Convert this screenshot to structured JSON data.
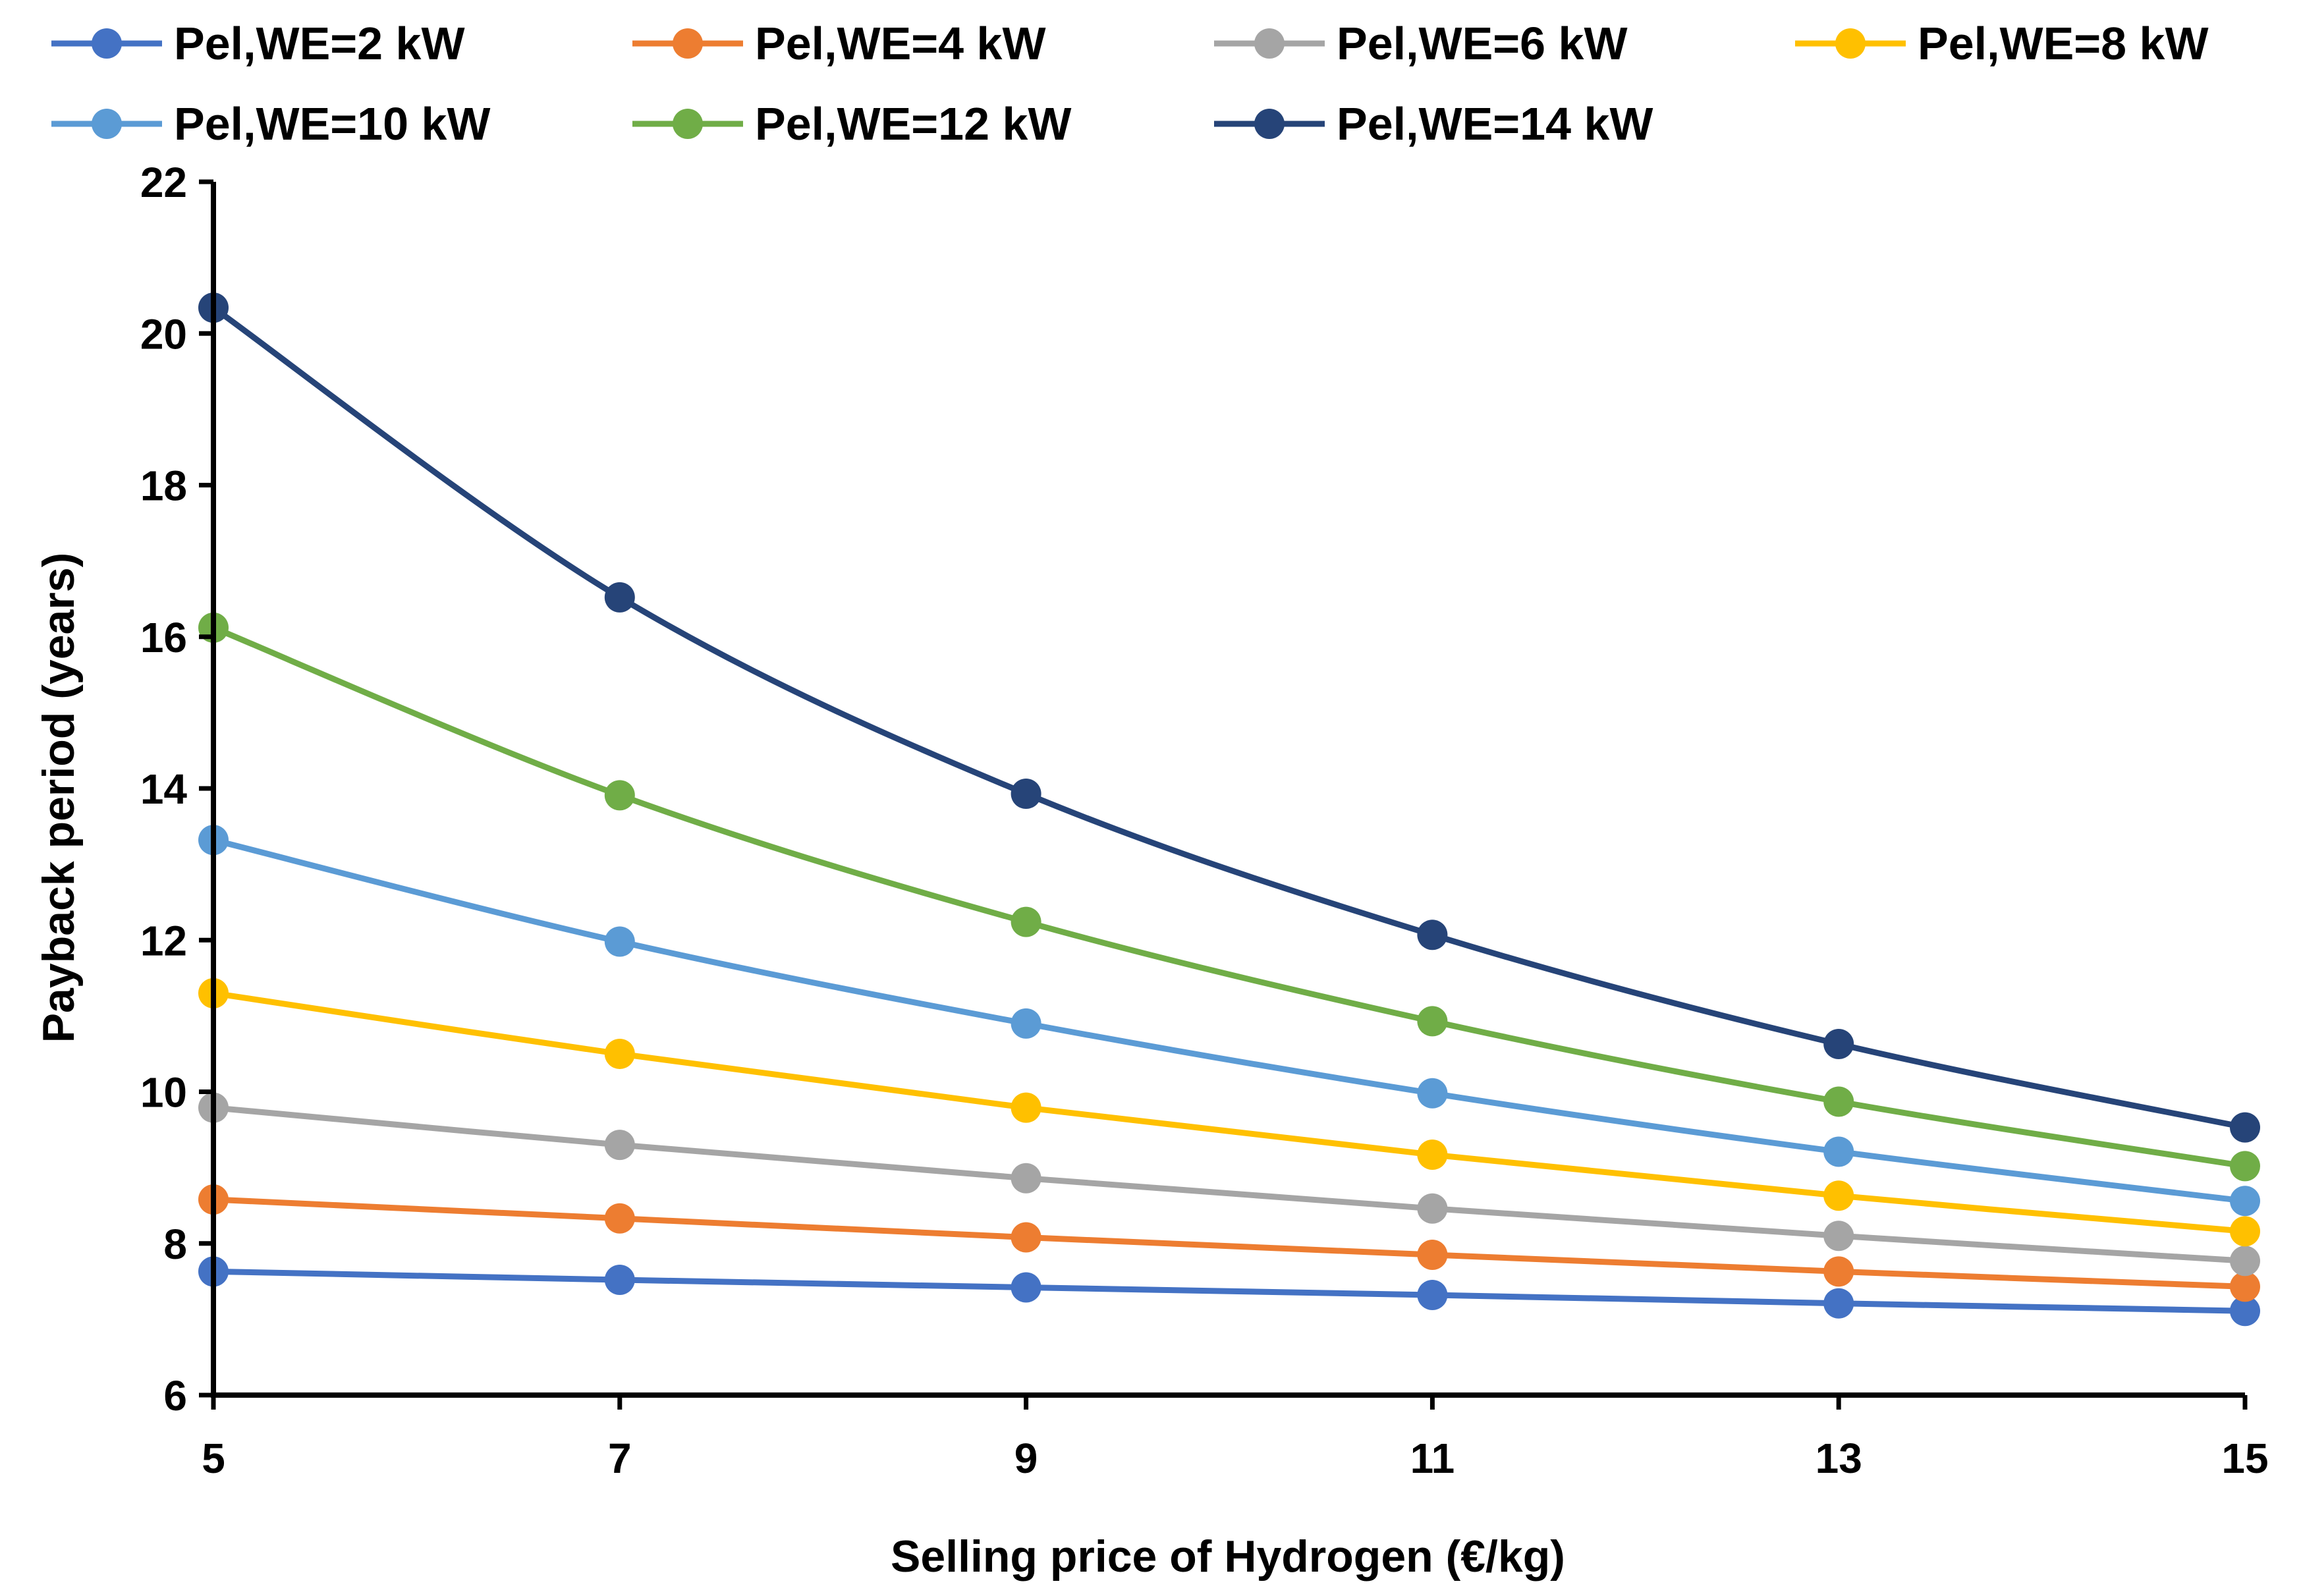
{
  "chart_data": {
    "type": "line",
    "title": "",
    "xlabel": "Selling price of Hydrogen (€/kg)",
    "ylabel": "Payback period (years)",
    "x": [
      5,
      7,
      9,
      11,
      13,
      15
    ],
    "x_ticks": [
      "5",
      "7",
      "9",
      "11",
      "13",
      "15"
    ],
    "y_ticks": [
      "6",
      "8",
      "10",
      "12",
      "14",
      "16",
      "18",
      "20",
      "22"
    ],
    "xlim": [
      5,
      15
    ],
    "ylim": [
      6,
      22
    ],
    "grid": false,
    "legend_position": "top",
    "series": [
      {
        "name": "Pel,WE=2 kW",
        "color": "#4472C4",
        "values": [
          7.63,
          7.52,
          7.42,
          7.32,
          7.21,
          7.11
        ]
      },
      {
        "name": "Pel,WE=4 kW",
        "color": "#ED7D31",
        "values": [
          8.58,
          8.33,
          8.08,
          7.85,
          7.63,
          7.43
        ]
      },
      {
        "name": "Pel,WE=6 kW",
        "color": "#A5A5A5",
        "values": [
          9.79,
          9.3,
          8.86,
          8.46,
          8.1,
          7.77
        ]
      },
      {
        "name": "Pel,WE=8 kW",
        "color": "#FFC000",
        "values": [
          11.3,
          10.5,
          9.79,
          9.17,
          8.63,
          8.16
        ]
      },
      {
        "name": "Pel,WE=10 kW",
        "color": "#5B9BD5",
        "values": [
          13.32,
          11.98,
          10.9,
          9.98,
          9.21,
          8.56
        ]
      },
      {
        "name": "Pel,WE=12 kW",
        "color": "#70AD47",
        "values": [
          16.12,
          13.91,
          12.24,
          10.93,
          9.87,
          9.02
        ]
      },
      {
        "name": "Pel,WE=14 kW",
        "color": "#264478",
        "values": [
          20.34,
          16.52,
          13.93,
          12.07,
          10.63,
          9.53
        ]
      }
    ]
  }
}
